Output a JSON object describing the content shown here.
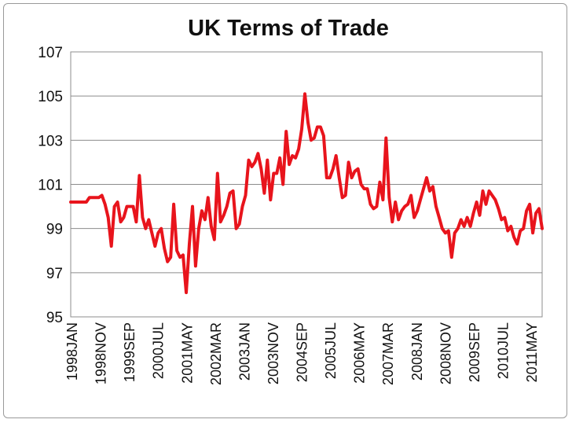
{
  "chart_data": {
    "type": "line",
    "title": "UK Terms of Trade",
    "xlabel": "",
    "ylabel": "",
    "ylim": [
      95,
      107
    ],
    "yticks": [
      "95",
      "97",
      "99",
      "101",
      "103",
      "105",
      "107"
    ],
    "xticks": [
      "1998JAN",
      "1998NOV",
      "1999SEP",
      "2000JUL",
      "2001MAY",
      "2002MAR",
      "2003JAN",
      "2003NOV",
      "2004SEP",
      "2005JUL",
      "2006MAY",
      "2007MAR",
      "2008JAN",
      "2008NOV",
      "2009SEP",
      "2010JUL",
      "2011MAY"
    ],
    "grid": "horizontal",
    "legend": "none",
    "line_color": "#e8141c",
    "series": [
      {
        "values": [
          100.2,
          100.2,
          100.2,
          100.2,
          100.2,
          100.2,
          100.4,
          100.4,
          100.4,
          100.4,
          100.5,
          100.1,
          99.5,
          98.2,
          100.0,
          100.2,
          99.3,
          99.5,
          100.0,
          100.0,
          100.0,
          99.3,
          101.4,
          99.5,
          99.0,
          99.4,
          98.8,
          98.2,
          98.8,
          99.0,
          98.1,
          97.5,
          97.7,
          100.1,
          98.0,
          97.7,
          97.8,
          96.1,
          98.3,
          100.0,
          97.3,
          99.0,
          99.8,
          99.4,
          100.4,
          99.1,
          98.5,
          101.5,
          99.3,
          99.6,
          100.0,
          100.6,
          100.7,
          99.0,
          99.2,
          100.0,
          100.5,
          102.1,
          101.8,
          102.0,
          102.4,
          101.7,
          100.6,
          102.1,
          100.3,
          101.5,
          101.5,
          102.2,
          101.0,
          103.4,
          101.9,
          102.3,
          102.2,
          102.6,
          103.5,
          105.1,
          103.8,
          103.0,
          103.1,
          103.6,
          103.6,
          103.2,
          101.3,
          101.3,
          101.7,
          102.3,
          101.3,
          100.4,
          100.5,
          102.0,
          101.3,
          101.6,
          101.7,
          101.0,
          100.8,
          100.8,
          100.1,
          99.9,
          100.0,
          101.1,
          100.3,
          103.1,
          100.4,
          99.3,
          100.2,
          99.4,
          99.8,
          100.0,
          100.1,
          100.5,
          99.5,
          99.8,
          100.3,
          100.8,
          101.3,
          100.7,
          100.9,
          100.0,
          99.5,
          99.0,
          98.8,
          98.9,
          97.7,
          98.8,
          99.0,
          99.4,
          99.1,
          99.5,
          99.1,
          99.7,
          100.2,
          99.6,
          100.7,
          100.1,
          100.7,
          100.5,
          100.3,
          99.9,
          99.4,
          99.5,
          98.9,
          99.1,
          98.6,
          98.3,
          98.9,
          99.0,
          99.8,
          100.1,
          98.8,
          99.7,
          99.9,
          99.0
        ]
      }
    ]
  }
}
